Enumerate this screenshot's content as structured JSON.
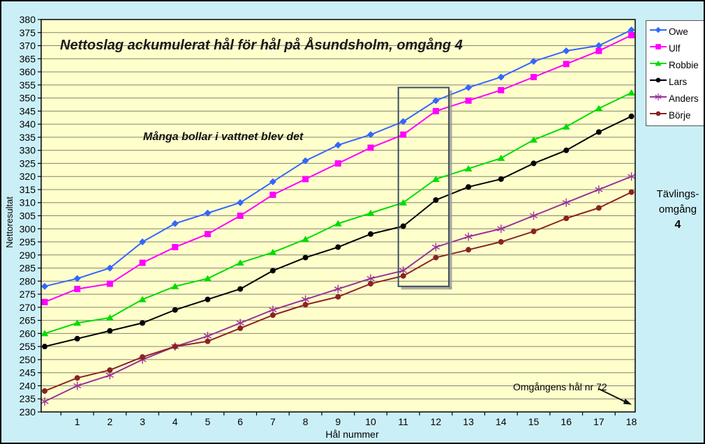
{
  "colors": {
    "outer_bg": "#CBEFF7",
    "plot_bg": "#FFFFCC",
    "gridline": "#84846E",
    "frame": "#000000",
    "highlight_border": "#3D4F60",
    "highlight_shadow": "#98988E",
    "arrow": "#111111"
  },
  "chart_data": {
    "type": "line",
    "title": "Nettoslag ackumulerat hål för hål på Åsundsholm, omgång 4",
    "annotation": "Många bollar i vattnet blev det",
    "xlabel": "Hål nummer",
    "ylabel": "Nettoresultat",
    "ylim": [
      230,
      380
    ],
    "ytick_step": 5,
    "grid": true,
    "legend_position": "right",
    "x_categories": [
      "",
      "1",
      "2",
      "3",
      "4",
      "5",
      "6",
      "7",
      "8",
      "9",
      "10",
      "11",
      "12",
      "13",
      "14",
      "15",
      "16",
      "17",
      "18"
    ],
    "series": [
      {
        "name": "Owe",
        "color": "#3366FF",
        "marker": "diamond",
        "values": [
          278,
          281,
          285,
          295,
          302,
          306,
          310,
          318,
          326,
          332,
          336,
          341,
          349,
          354,
          358,
          364,
          368,
          370,
          376
        ]
      },
      {
        "name": "Ulf",
        "color": "#FF00FF",
        "marker": "square",
        "values": [
          272,
          277,
          279,
          287,
          293,
          298,
          305,
          313,
          319,
          325,
          331,
          336,
          345,
          349,
          353,
          358,
          363,
          368,
          374
        ]
      },
      {
        "name": "Robbie",
        "color": "#00DD00",
        "marker": "triangle",
        "values": [
          260,
          264,
          266,
          273,
          278,
          281,
          287,
          291,
          296,
          302,
          306,
          310,
          319,
          323,
          327,
          334,
          339,
          346,
          352
        ]
      },
      {
        "name": "Lars",
        "color": "#000000",
        "marker": "circle",
        "values": [
          255,
          258,
          261,
          264,
          269,
          273,
          277,
          284,
          289,
          293,
          298,
          301,
          311,
          316,
          319,
          325,
          330,
          337,
          343
        ]
      },
      {
        "name": "Anders",
        "color": "#993399",
        "marker": "asterisk",
        "values": [
          234,
          240,
          244,
          250,
          255,
          259,
          264,
          269,
          273,
          277,
          281,
          284,
          293,
          297,
          300,
          305,
          310,
          315,
          320
        ]
      },
      {
        "name": "Börje",
        "color": "#8B2323",
        "marker": "circle",
        "values": [
          238,
          243,
          246,
          251,
          255,
          257,
          262,
          267,
          271,
          274,
          279,
          282,
          289,
          292,
          295,
          299,
          304,
          308,
          314
        ]
      }
    ],
    "highlight_box": {
      "x_from": 10.85,
      "x_to": 12.4,
      "y_from": 278,
      "y_to": 354
    },
    "callout": {
      "text": "Omgångens hål nr 72"
    }
  },
  "side_label": {
    "line1": "Tävlings-",
    "line2": "omgång",
    "line3": "4"
  }
}
